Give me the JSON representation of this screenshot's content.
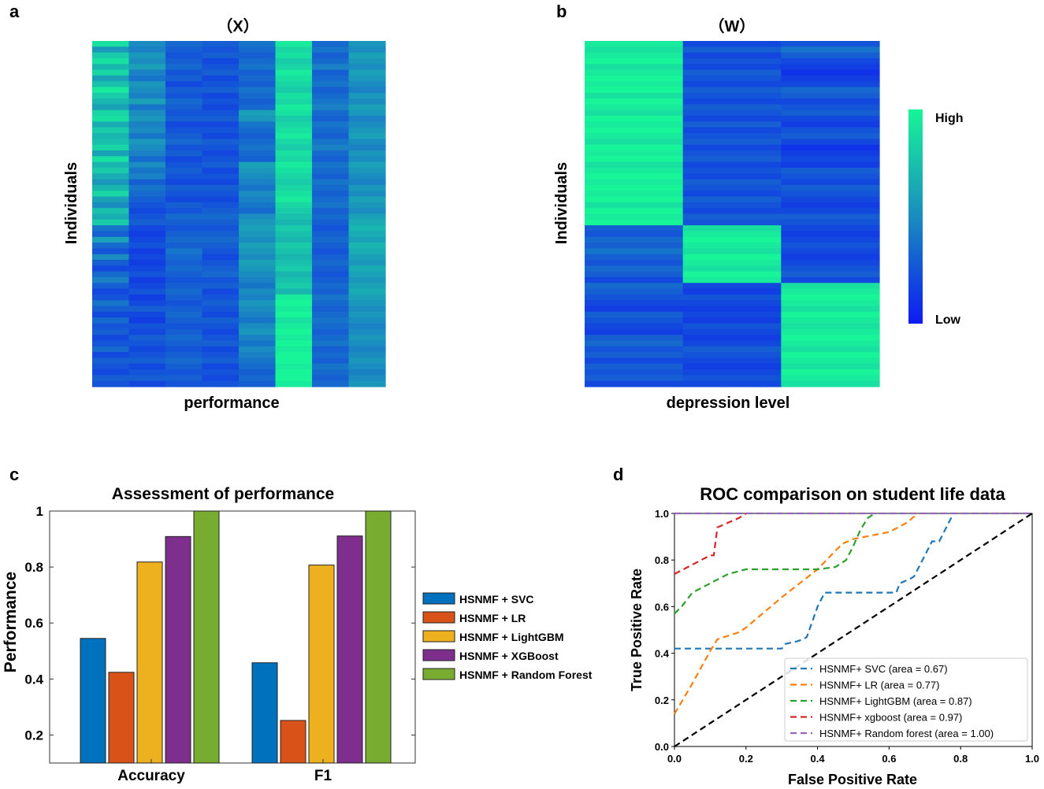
{
  "panel_labels": {
    "a": "a",
    "b": "b",
    "c": "c",
    "d": "d"
  },
  "colors": {
    "heat_low": "#0d1bf2",
    "heat_mid": "#1a8cbf",
    "heat_high": "#18f598"
  },
  "chart_data": [
    {
      "type": "heatmap",
      "title": "（X）",
      "xlabel": "performance",
      "ylabel": "Individuals",
      "rows": 60,
      "columns": 8,
      "column_levels": [
        [
          0.9,
          0.55,
          0.8,
          0.9,
          0.7,
          0.85,
          0.6,
          0.75,
          0.95,
          0.8,
          0.7,
          0.6,
          0.85,
          0.9,
          0.65,
          0.8,
          0.7,
          0.75,
          0.85,
          0.6,
          0.9,
          0.7,
          0.8,
          0.65,
          0.55,
          0.7,
          0.85,
          0.6,
          0.5,
          0.75,
          0.65,
          0.8,
          0.4,
          0.3,
          0.6,
          0.35,
          0.25,
          0.5,
          0.3,
          0.2,
          0.35,
          0.45,
          0.3,
          0.2,
          0.25,
          0.4,
          0.3,
          0.2,
          0.35,
          0.25,
          0.3,
          0.2,
          0.25,
          0.35,
          0.2,
          0.3,
          0.25,
          0.2,
          0.3,
          0.25
        ],
        [
          0.5,
          0.45,
          0.55,
          0.5,
          0.6,
          0.45,
          0.4,
          0.55,
          0.5,
          0.45,
          0.6,
          0.4,
          0.5,
          0.55,
          0.45,
          0.5,
          0.4,
          0.55,
          0.5,
          0.45,
          0.35,
          0.5,
          0.4,
          0.45,
          0.3,
          0.4,
          0.35,
          0.3,
          0.25,
          0.2,
          0.25,
          0.3,
          0.2,
          0.15,
          0.2,
          0.25,
          0.15,
          0.2,
          0.15,
          0.2,
          0.25,
          0.15,
          0.2,
          0.25,
          0.15,
          0.2,
          0.3,
          0.2,
          0.15,
          0.25,
          0.2,
          0.3,
          0.25,
          0.2,
          0.25,
          0.3,
          0.2,
          0.25,
          0.3,
          0.2
        ],
        [
          0.35,
          0.3,
          0.25,
          0.3,
          0.35,
          0.25,
          0.3,
          0.2,
          0.3,
          0.25,
          0.35,
          0.3,
          0.25,
          0.3,
          0.2,
          0.25,
          0.3,
          0.35,
          0.25,
          0.3,
          0.2,
          0.25,
          0.3,
          0.25,
          0.2,
          0.3,
          0.25,
          0.2,
          0.3,
          0.25,
          0.35,
          0.3,
          0.25,
          0.3,
          0.35,
          0.3,
          0.4,
          0.35,
          0.3,
          0.35,
          0.3,
          0.25,
          0.3,
          0.35,
          0.3,
          0.25,
          0.3,
          0.35,
          0.3,
          0.25,
          0.3,
          0.35,
          0.3,
          0.25,
          0.3,
          0.35,
          0.3,
          0.25,
          0.3,
          0.25
        ],
        [
          0.3,
          0.25,
          0.3,
          0.2,
          0.25,
          0.3,
          0.2,
          0.25,
          0.3,
          0.2,
          0.25,
          0.2,
          0.25,
          0.3,
          0.2,
          0.25,
          0.2,
          0.3,
          0.25,
          0.2,
          0.25,
          0.3,
          0.2,
          0.25,
          0.2,
          0.3,
          0.25,
          0.2,
          0.25,
          0.3,
          0.35,
          0.3,
          0.25,
          0.3,
          0.35,
          0.3,
          0.25,
          0.2,
          0.25,
          0.3,
          0.35,
          0.25,
          0.3,
          0.2,
          0.25,
          0.3,
          0.25,
          0.2,
          0.3,
          0.25,
          0.2,
          0.25,
          0.3,
          0.2,
          0.25,
          0.3,
          0.2,
          0.25,
          0.2,
          0.25
        ],
        [
          0.4,
          0.35,
          0.3,
          0.35,
          0.4,
          0.3,
          0.35,
          0.3,
          0.4,
          0.35,
          0.3,
          0.35,
          0.6,
          0.55,
          0.4,
          0.35,
          0.3,
          0.35,
          0.4,
          0.35,
          0.3,
          0.6,
          0.55,
          0.5,
          0.45,
          0.4,
          0.5,
          0.45,
          0.4,
          0.35,
          0.5,
          0.55,
          0.6,
          0.55,
          0.5,
          0.6,
          0.55,
          0.5,
          0.6,
          0.55,
          0.5,
          0.45,
          0.4,
          0.5,
          0.45,
          0.55,
          0.5,
          0.45,
          0.4,
          0.5,
          0.55,
          0.45,
          0.4,
          0.5,
          0.45,
          0.4,
          0.35,
          0.3,
          0.35,
          0.3
        ],
        [
          0.95,
          0.85,
          0.9,
          0.8,
          0.85,
          0.95,
          0.9,
          0.85,
          0.8,
          0.9,
          0.85,
          0.95,
          0.9,
          0.8,
          0.85,
          0.9,
          0.95,
          0.85,
          0.8,
          0.9,
          0.85,
          0.95,
          0.9,
          0.85,
          0.8,
          0.85,
          0.9,
          0.95,
          0.85,
          0.8,
          0.75,
          0.7,
          0.8,
          0.75,
          0.7,
          0.8,
          0.75,
          0.7,
          0.75,
          0.8,
          0.7,
          0.75,
          0.8,
          0.7,
          0.95,
          1.0,
          0.95,
          1.0,
          0.9,
          0.95,
          1.0,
          0.95,
          1.0,
          0.95,
          1.0,
          1.0,
          0.95,
          1.0,
          1.0,
          0.95
        ],
        [
          0.35,
          0.4,
          0.3,
          0.35,
          0.45,
          0.3,
          0.35,
          0.4,
          0.3,
          0.35,
          0.4,
          0.45,
          0.35,
          0.3,
          0.4,
          0.35,
          0.3,
          0.4,
          0.45,
          0.35,
          0.3,
          0.4,
          0.35,
          0.3,
          0.4,
          0.35,
          0.3,
          0.35,
          0.4,
          0.3,
          0.35,
          0.3,
          0.25,
          0.3,
          0.35,
          0.3,
          0.25,
          0.3,
          0.35,
          0.3,
          0.25,
          0.3,
          0.35,
          0.3,
          0.4,
          0.35,
          0.3,
          0.35,
          0.4,
          0.35,
          0.3,
          0.35,
          0.4,
          0.3,
          0.35,
          0.3,
          0.4,
          0.35,
          0.3,
          0.35
        ],
        [
          0.55,
          0.5,
          0.6,
          0.55,
          0.5,
          0.6,
          0.55,
          0.5,
          0.45,
          0.55,
          0.5,
          0.6,
          0.55,
          0.45,
          0.5,
          0.55,
          0.6,
          0.5,
          0.45,
          0.55,
          0.5,
          0.6,
          0.55,
          0.5,
          0.45,
          0.55,
          0.5,
          0.6,
          0.55,
          0.5,
          0.6,
          0.65,
          0.7,
          0.65,
          0.6,
          0.7,
          0.65,
          0.6,
          0.55,
          0.65,
          0.6,
          0.55,
          0.6,
          0.65,
          0.6,
          0.55,
          0.5,
          0.55,
          0.5,
          0.45,
          0.5,
          0.55,
          0.5,
          0.45,
          0.5,
          0.55,
          0.5,
          0.45,
          0.5,
          0.55
        ]
      ]
    },
    {
      "type": "heatmap",
      "title": "（W）",
      "xlabel": "depression level",
      "ylabel": "Individuals",
      "rows": 60,
      "columns": 3,
      "column_levels": [
        [
          0.95,
          0.9,
          0.95,
          1.0,
          0.9,
          0.95,
          1.0,
          0.95,
          1.0,
          0.9,
          1.0,
          0.95,
          0.9,
          1.0,
          0.95,
          1.0,
          0.95,
          0.9,
          1.0,
          0.95,
          1.0,
          0.9,
          0.95,
          1.0,
          0.95,
          1.0,
          0.95,
          1.0,
          0.9,
          1.0,
          0.95,
          1.0,
          0.3,
          0.25,
          0.35,
          0.3,
          0.4,
          0.3,
          0.25,
          0.35,
          0.3,
          0.2,
          0.35,
          0.3,
          0.25,
          0.2,
          0.15,
          0.3,
          0.25,
          0.2,
          0.15,
          0.3,
          0.35,
          0.25,
          0.3,
          0.2,
          0.3,
          0.25,
          0.3,
          0.2
        ],
        [
          0.2,
          0.3,
          0.2,
          0.25,
          0.2,
          0.3,
          0.25,
          0.2,
          0.3,
          0.25,
          0.2,
          0.3,
          0.25,
          0.2,
          0.3,
          0.2,
          0.25,
          0.3,
          0.2,
          0.25,
          0.3,
          0.2,
          0.25,
          0.2,
          0.3,
          0.25,
          0.2,
          0.3,
          0.25,
          0.2,
          0.3,
          0.25,
          0.9,
          0.95,
          1.0,
          0.95,
          0.9,
          1.0,
          0.95,
          0.9,
          1.0,
          0.95,
          0.2,
          0.15,
          0.25,
          0.2,
          0.15,
          0.2,
          0.15,
          0.25,
          0.2,
          0.15,
          0.2,
          0.3,
          0.25,
          0.2,
          0.15,
          0.2,
          0.25,
          0.2
        ],
        [
          0.25,
          0.4,
          0.3,
          0.2,
          0.15,
          0.1,
          0.15,
          0.2,
          0.35,
          0.3,
          0.2,
          0.25,
          0.3,
          0.2,
          0.15,
          0.25,
          0.3,
          0.2,
          0.1,
          0.15,
          0.2,
          0.15,
          0.3,
          0.25,
          0.2,
          0.3,
          0.25,
          0.2,
          0.15,
          0.2,
          0.3,
          0.25,
          0.2,
          0.15,
          0.2,
          0.25,
          0.2,
          0.15,
          0.2,
          0.25,
          0.3,
          0.2,
          0.9,
          0.95,
          1.0,
          0.95,
          0.9,
          1.0,
          0.95,
          0.9,
          0.95,
          1.0,
          0.95,
          0.9,
          1.0,
          0.95,
          0.9,
          1.0,
          0.95,
          0.9
        ]
      ]
    },
    {
      "type": "bar",
      "title": "Assessment of performance",
      "ylabel": "Performance",
      "categories": [
        "Accuracy",
        "F1"
      ],
      "ylim": [
        0.1,
        1.0
      ],
      "yticks": [
        "0.2",
        "0.4",
        "0.6",
        "0.8",
        "1"
      ],
      "series": [
        {
          "name": "HSNMF + SVC",
          "color": "#0072bd",
          "values": [
            0.545,
            0.458
          ]
        },
        {
          "name": "HSNMF + LR",
          "color": "#d95319",
          "values": [
            0.424,
            0.252
          ]
        },
        {
          "name": "HSNMF + LightGBM",
          "color": "#edb120",
          "values": [
            0.818,
            0.807
          ]
        },
        {
          "name": "HSNMF + XGBoost",
          "color": "#7e2f8e",
          "values": [
            0.909,
            0.911
          ]
        },
        {
          "name": "HSNMF + Random Forest",
          "color": "#77ac30",
          "values": [
            1.0,
            1.0
          ]
        }
      ]
    },
    {
      "type": "line",
      "title": "ROC comparison on student life data",
      "xlabel": "False Positive Rate",
      "ylabel": "True Positive Rate",
      "xlim": [
        0,
        1
      ],
      "ylim": [
        0,
        1
      ],
      "xticks": [
        "0.0",
        "0.2",
        "0.4",
        "0.6",
        "0.8",
        "1.0"
      ],
      "yticks": [
        "0.0",
        "0.2",
        "0.4",
        "0.6",
        "0.8",
        "1.0"
      ],
      "series": [
        {
          "name": "HSNMF+ SVC (area = 0.67)",
          "color": "#1f77b4",
          "x": [
            0,
            0.1,
            0.2,
            0.3,
            0.31,
            0.34,
            0.36,
            0.37,
            0.4,
            0.42,
            0.5,
            0.62,
            0.63,
            0.66,
            0.67,
            0.7,
            0.72,
            0.74,
            0.78
          ],
          "y": [
            0.42,
            0.42,
            0.42,
            0.42,
            0.44,
            0.45,
            0.46,
            0.47,
            0.6,
            0.66,
            0.66,
            0.66,
            0.7,
            0.72,
            0.73,
            0.82,
            0.88,
            0.88,
            1.0
          ]
        },
        {
          "name": "HSNMF+ LR (area = 0.77)",
          "color": "#ff7f0e",
          "x": [
            0,
            0.05,
            0.1,
            0.12,
            0.18,
            0.2,
            0.3,
            0.4,
            0.45,
            0.47,
            0.5,
            0.6,
            0.65,
            0.68
          ],
          "y": [
            0.14,
            0.27,
            0.41,
            0.46,
            0.49,
            0.51,
            0.64,
            0.76,
            0.84,
            0.87,
            0.89,
            0.92,
            0.96,
            1.0
          ]
        },
        {
          "name": "HSNMF+ LightGBM (area = 0.87)",
          "color": "#2ca02c",
          "x": [
            0,
            0.02,
            0.05,
            0.1,
            0.15,
            0.2,
            0.3,
            0.4,
            0.45,
            0.48,
            0.5,
            0.52,
            0.54,
            0.56
          ],
          "y": [
            0.57,
            0.6,
            0.66,
            0.7,
            0.74,
            0.76,
            0.76,
            0.76,
            0.77,
            0.8,
            0.86,
            0.93,
            0.98,
            1.0
          ]
        },
        {
          "name": "HSNMF+ xgboost (area = 0.97)",
          "color": "#d62728",
          "x": [
            0,
            0.05,
            0.1,
            0.11,
            0.12,
            0.15,
            0.18,
            0.2
          ],
          "y": [
            0.74,
            0.78,
            0.82,
            0.82,
            0.94,
            0.96,
            0.98,
            1.0
          ]
        },
        {
          "name": "HSNMF+ Random forest (area = 1.00)",
          "color": "#9467bd",
          "x": [
            0,
            1
          ],
          "y": [
            1.0,
            1.0
          ]
        },
        {
          "name": "chance",
          "color": "#000000",
          "x": [
            0,
            1
          ],
          "y": [
            0,
            1
          ]
        }
      ]
    }
  ],
  "colorbar": {
    "high_label": "High",
    "low_label": "Low"
  }
}
